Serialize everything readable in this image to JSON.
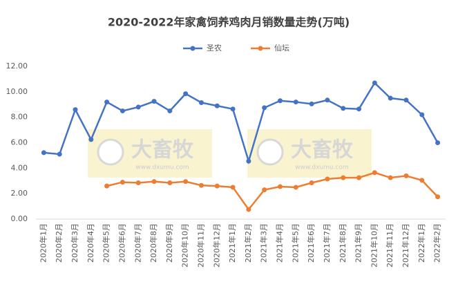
{
  "chart_data": {
    "type": "line",
    "title": "2020-2022年家禽饲养鸡肉月销数量走势(万吨)",
    "categories": [
      "2020年1月",
      "2020年2月",
      "2020年3月",
      "2020年4月",
      "2020年5月",
      "2020年6月",
      "2020年7月",
      "2020年8月",
      "2020年9月",
      "2020年10月",
      "2020年11月",
      "2020年12月",
      "2021年1月",
      "2021年2月",
      "2021年3月",
      "2021年4月",
      "2021年5月",
      "2021年6月",
      "2021年7月",
      "2021年8月",
      "2021年9月",
      "2021年10月",
      "2021年11月",
      "2021年12月",
      "2022年1月",
      "2022年2月"
    ],
    "series": [
      {
        "name": "圣农",
        "color": "#4472c4",
        "values": [
          5.22,
          5.1,
          8.6,
          6.25,
          9.2,
          8.5,
          8.8,
          9.25,
          8.5,
          9.85,
          9.15,
          8.9,
          8.65,
          4.55,
          8.75,
          9.3,
          9.2,
          9.05,
          9.35,
          8.7,
          8.65,
          10.7,
          9.5,
          9.35,
          8.2,
          6.0
        ]
      },
      {
        "name": "仙坛",
        "color": "#ed7d31",
        "values": [
          null,
          null,
          null,
          null,
          2.6,
          2.9,
          2.85,
          2.95,
          2.85,
          2.95,
          2.65,
          2.6,
          2.5,
          0.76,
          2.3,
          2.55,
          2.5,
          2.85,
          3.15,
          3.25,
          3.25,
          3.65,
          3.25,
          3.4,
          3.05,
          1.75
        ]
      }
    ],
    "ylim": [
      0,
      12
    ],
    "yticks": [
      {
        "value": 0,
        "label": "0.00"
      },
      {
        "value": 2,
        "label": "2.00"
      },
      {
        "value": 4,
        "label": "4.00"
      },
      {
        "value": 6,
        "label": "6.00"
      },
      {
        "value": 8,
        "label": "8.00"
      },
      {
        "value": 10,
        "label": "10.00"
      },
      {
        "value": 12,
        "label": "12.00"
      }
    ],
    "legend": "top",
    "watermark": {
      "brand": "大畜牧",
      "url": "www.dxumu.com"
    }
  }
}
